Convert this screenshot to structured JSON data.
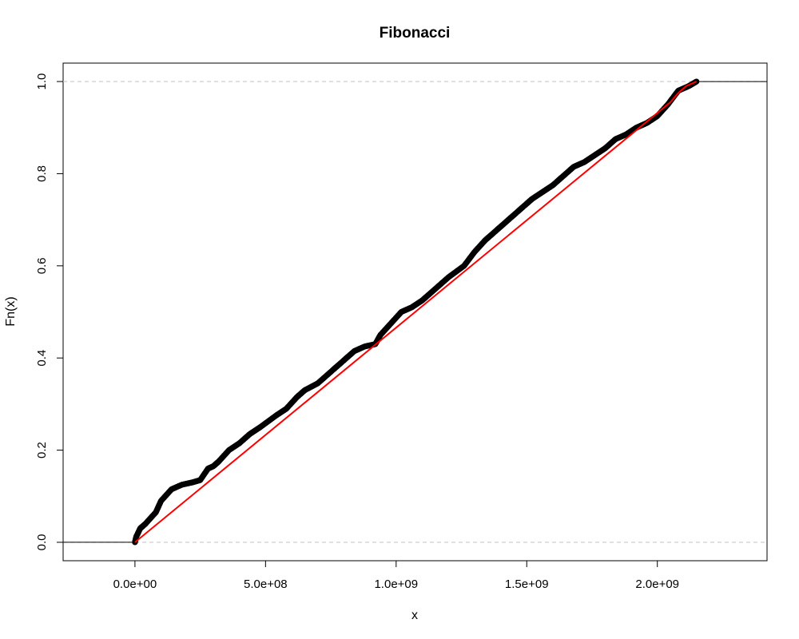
{
  "chart_data": {
    "type": "line",
    "title": "Fibonacci",
    "xlabel": "x",
    "ylabel": "Fn(x)",
    "xlim": [
      -275000000,
      2420000000
    ],
    "ylim": [
      -0.04,
      1.04
    ],
    "x_ticks": [
      0,
      500000000,
      1000000000,
      1500000000,
      2000000000
    ],
    "x_tick_labels": [
      "0.0e+00",
      "5.0e+08",
      "1.0e+09",
      "1.5e+09",
      "2.0e+09"
    ],
    "y_ticks": [
      0.0,
      0.2,
      0.4,
      0.6,
      0.8,
      1.0
    ],
    "y_tick_labels": [
      "0.0",
      "0.2",
      "0.4",
      "0.6",
      "0.8",
      "1.0"
    ],
    "reference_lines_y": [
      0,
      1
    ],
    "grid": false,
    "series": [
      {
        "kind": "empirical-cdf",
        "color": "#000000",
        "x": [
          0,
          5000000,
          20000000,
          40000000,
          80000000,
          100000000,
          140000000,
          180000000,
          220000000,
          250000000,
          280000000,
          300000000,
          320000000,
          360000000,
          400000000,
          440000000,
          480000000,
          540000000,
          580000000,
          620000000,
          650000000,
          700000000,
          760000000,
          800000000,
          840000000,
          880000000,
          920000000,
          940000000,
          980000000,
          1020000000,
          1060000000,
          1100000000,
          1140000000,
          1200000000,
          1260000000,
          1300000000,
          1340000000,
          1380000000,
          1420000000,
          1460000000,
          1500000000,
          1520000000,
          1560000000,
          1600000000,
          1640000000,
          1680000000,
          1720000000,
          1760000000,
          1800000000,
          1840000000,
          1880000000,
          1920000000,
          1960000000,
          2000000000,
          2040000000,
          2080000000,
          2120000000,
          2150000000
        ],
        "y": [
          0.0,
          0.012,
          0.03,
          0.04,
          0.065,
          0.09,
          0.115,
          0.125,
          0.13,
          0.135,
          0.16,
          0.165,
          0.175,
          0.2,
          0.215,
          0.235,
          0.25,
          0.275,
          0.29,
          0.315,
          0.33,
          0.345,
          0.375,
          0.395,
          0.415,
          0.425,
          0.43,
          0.45,
          0.475,
          0.5,
          0.51,
          0.525,
          0.545,
          0.575,
          0.6,
          0.63,
          0.655,
          0.675,
          0.695,
          0.715,
          0.735,
          0.745,
          0.76,
          0.775,
          0.795,
          0.815,
          0.825,
          0.84,
          0.855,
          0.875,
          0.885,
          0.9,
          0.91,
          0.925,
          0.95,
          0.98,
          0.99,
          1.0
        ]
      },
      {
        "kind": "theoretical-cdf",
        "color": "#ff0000",
        "x": [
          0,
          2050000000,
          2080000000,
          2110000000,
          2150000000
        ],
        "y": [
          0.0,
          0.955,
          0.975,
          0.99,
          1.0
        ]
      }
    ]
  }
}
